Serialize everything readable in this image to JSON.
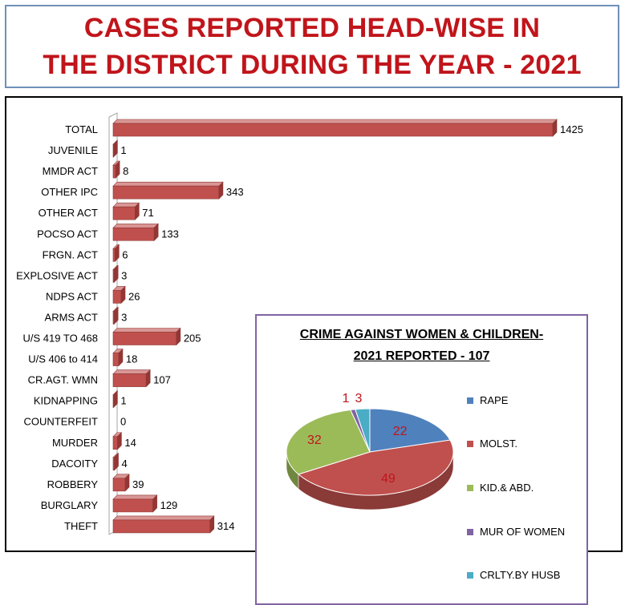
{
  "title": {
    "line1": "CASES REPORTED HEAD-WISE IN",
    "line2": "THE DISTRICT  DURING THE YEAR - 2021"
  },
  "colors": {
    "title_text": "#c0151b",
    "bar": "#c0504d",
    "pie_rape": "#4f81bd",
    "pie_molst": "#c0504d",
    "pie_kid": "#9bbb59",
    "pie_mur": "#8064a2",
    "pie_crlty": "#4bacc6",
    "pie_label": "#c0151b"
  },
  "chart_data": [
    {
      "type": "bar",
      "orientation": "horizontal",
      "categories": [
        "TOTAL",
        "JUVENILE",
        "MMDR ACT",
        "OTHER IPC",
        "OTHER ACT",
        "POCSO ACT",
        "FRGN. ACT",
        "EXPLOSIVE ACT",
        "NDPS ACT",
        "ARMS ACT",
        "U/S 419 TO 468",
        "U/S 406 to 414",
        "CR.AGT. WMN",
        "KIDNAPPING",
        "COUNTERFEIT",
        "MURDER",
        "DACOITY",
        "ROBBERY",
        "BURGLARY",
        "THEFT"
      ],
      "values": [
        1425,
        1,
        8,
        343,
        71,
        133,
        6,
        3,
        26,
        3,
        205,
        18,
        107,
        1,
        0,
        14,
        4,
        39,
        129,
        314
      ],
      "value_labels": [
        "1425",
        "1",
        "8",
        "343",
        "71",
        "133",
        "6",
        "3",
        "26",
        "3",
        "205",
        "18",
        "107",
        "1",
        "0",
        "14",
        "4",
        "39",
        "129",
        "314"
      ],
      "xlim": [
        0,
        1425
      ],
      "grid": false,
      "legend": "none"
    },
    {
      "type": "pie",
      "title_line1": "CRIME AGAINST WOMEN & CHILDREN-",
      "title_line2": "2021 REPORTED  - 107",
      "labels": [
        "RAPE",
        "MOLST.",
        "KID.& ABD.",
        "MUR OF WOMEN",
        "CRLTY.BY HUSB"
      ],
      "values": [
        22,
        49,
        32,
        1,
        3
      ],
      "value_labels": [
        "22",
        "49",
        "32",
        "1",
        "3"
      ],
      "legend": "right"
    }
  ]
}
